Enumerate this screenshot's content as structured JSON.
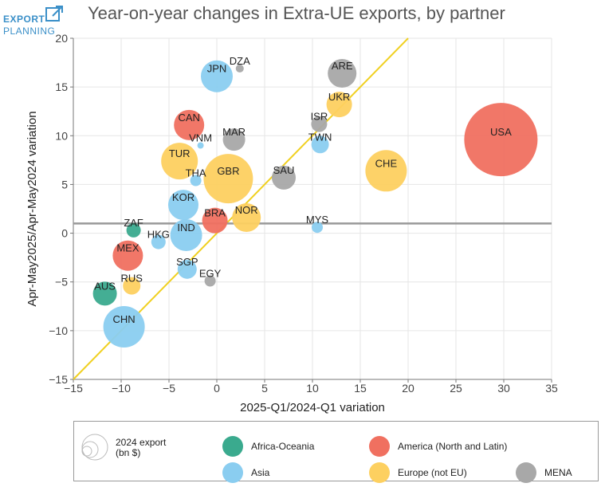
{
  "logo": {
    "line1": "EXPORT",
    "line2": "PLANNING"
  },
  "colors": {
    "Africa-Oceania": "#3aaa8e",
    "America (North and Latin)": "#f07060",
    "Asia": "#8acdf0",
    "Europe (not EU)": "#fdd060",
    "MENA": "#a8a8a8",
    "diagonal": "#f0d020",
    "hline": "#999999",
    "grid": "#e6e6e6"
  },
  "chart_data": {
    "type": "scatter",
    "title": "Year-on-year changes in Extra-UE exports, by partner",
    "xlabel": "2025-Q1/2024-Q1 variation",
    "ylabel": "Apr-May2025/Apr-May2024 variation",
    "xlim": [
      -15,
      35
    ],
    "ylim": [
      -15,
      20
    ],
    "xticks": [
      -15,
      -10,
      -5,
      0,
      5,
      10,
      15,
      20,
      25,
      30,
      35
    ],
    "yticks": [
      -15,
      -10,
      -5,
      0,
      5,
      10,
      15,
      20
    ],
    "xtick_labels": [
      "−15",
      "−10",
      "−5",
      "0",
      "5",
      "10",
      "15",
      "20",
      "25",
      "30",
      "35"
    ],
    "ytick_labels": [
      "−15",
      "−10",
      "−5",
      "0",
      "5",
      "10",
      "15",
      "20"
    ],
    "grid": true,
    "reference_lines": {
      "diagonal": [
        [
          -15,
          -15
        ],
        [
          20,
          20
        ]
      ],
      "horizontal_y": 1.0
    },
    "size_legend": {
      "label": "2024 export\n(bn $)"
    },
    "legend": [
      "Africa-Oceania",
      "America (North and Latin)",
      "Asia",
      "Europe (not EU)",
      "MENA"
    ],
    "points": [
      {
        "label": "USA",
        "x": 29.7,
        "y": 9.6,
        "group": "America (North and Latin)",
        "size": 46
      },
      {
        "label": "CHN",
        "x": -9.7,
        "y": -9.6,
        "group": "Asia",
        "size": 26
      },
      {
        "label": "GBR",
        "x": 1.2,
        "y": 5.6,
        "group": "Europe (not EU)",
        "size": 31
      },
      {
        "label": "CHE",
        "x": 17.7,
        "y": 6.4,
        "group": "Europe (not EU)",
        "size": 26
      },
      {
        "label": "TUR",
        "x": -3.9,
        "y": 7.4,
        "group": "Europe (not EU)",
        "size": 23
      },
      {
        "label": "JPN",
        "x": 0.0,
        "y": 16.1,
        "group": "Asia",
        "size": 20
      },
      {
        "label": "KOR",
        "x": -3.5,
        "y": 2.9,
        "group": "Asia",
        "size": 19
      },
      {
        "label": "IND",
        "x": -3.2,
        "y": -0.2,
        "group": "Asia",
        "size": 20
      },
      {
        "label": "CAN",
        "x": -2.9,
        "y": 11.1,
        "group": "America (North and Latin)",
        "size": 19
      },
      {
        "label": "MEX",
        "x": -9.3,
        "y": -2.3,
        "group": "America (North and Latin)",
        "size": 19
      },
      {
        "label": "NOR",
        "x": 3.1,
        "y": 1.6,
        "group": "Europe (not EU)",
        "size": 18
      },
      {
        "label": "BRA",
        "x": -0.2,
        "y": 1.3,
        "group": "America (North and Latin)",
        "size": 16
      },
      {
        "label": "ARE",
        "x": 13.1,
        "y": 16.4,
        "group": "MENA",
        "size": 18
      },
      {
        "label": "UKR",
        "x": 12.8,
        "y": 13.2,
        "group": "Europe (not EU)",
        "size": 16
      },
      {
        "label": "SAU",
        "x": 7.0,
        "y": 5.7,
        "group": "MENA",
        "size": 15
      },
      {
        "label": "MAR",
        "x": 1.8,
        "y": 9.6,
        "group": "MENA",
        "size": 14
      },
      {
        "label": "AUS",
        "x": -11.7,
        "y": -6.2,
        "group": "Africa-Oceania",
        "size": 15
      },
      {
        "label": "SGP",
        "x": -3.1,
        "y": -3.7,
        "group": "Asia",
        "size": 12
      },
      {
        "label": "TWN",
        "x": 10.8,
        "y": 9.1,
        "group": "Asia",
        "size": 11
      },
      {
        "label": "RUS",
        "x": -8.9,
        "y": -5.4,
        "group": "Europe (not EU)",
        "size": 11
      },
      {
        "label": "ISR",
        "x": 10.7,
        "y": 11.2,
        "group": "MENA",
        "size": 10
      },
      {
        "label": "HKG",
        "x": -6.1,
        "y": -0.9,
        "group": "Asia",
        "size": 9
      },
      {
        "label": "ZAF",
        "x": -8.7,
        "y": 0.3,
        "group": "Africa-Oceania",
        "size": 9
      },
      {
        "label": "MYS",
        "x": 10.5,
        "y": 0.6,
        "group": "Asia",
        "size": 7
      },
      {
        "label": "EGY",
        "x": -0.7,
        "y": -4.9,
        "group": "MENA",
        "size": 7
      },
      {
        "label": "THA",
        "x": -2.2,
        "y": 5.4,
        "group": "Asia",
        "size": 7
      },
      {
        "label": "DZA",
        "x": 2.4,
        "y": 16.9,
        "group": "MENA",
        "size": 5
      },
      {
        "label": "VNM",
        "x": -1.7,
        "y": 9.0,
        "group": "Asia",
        "size": 4
      }
    ]
  }
}
